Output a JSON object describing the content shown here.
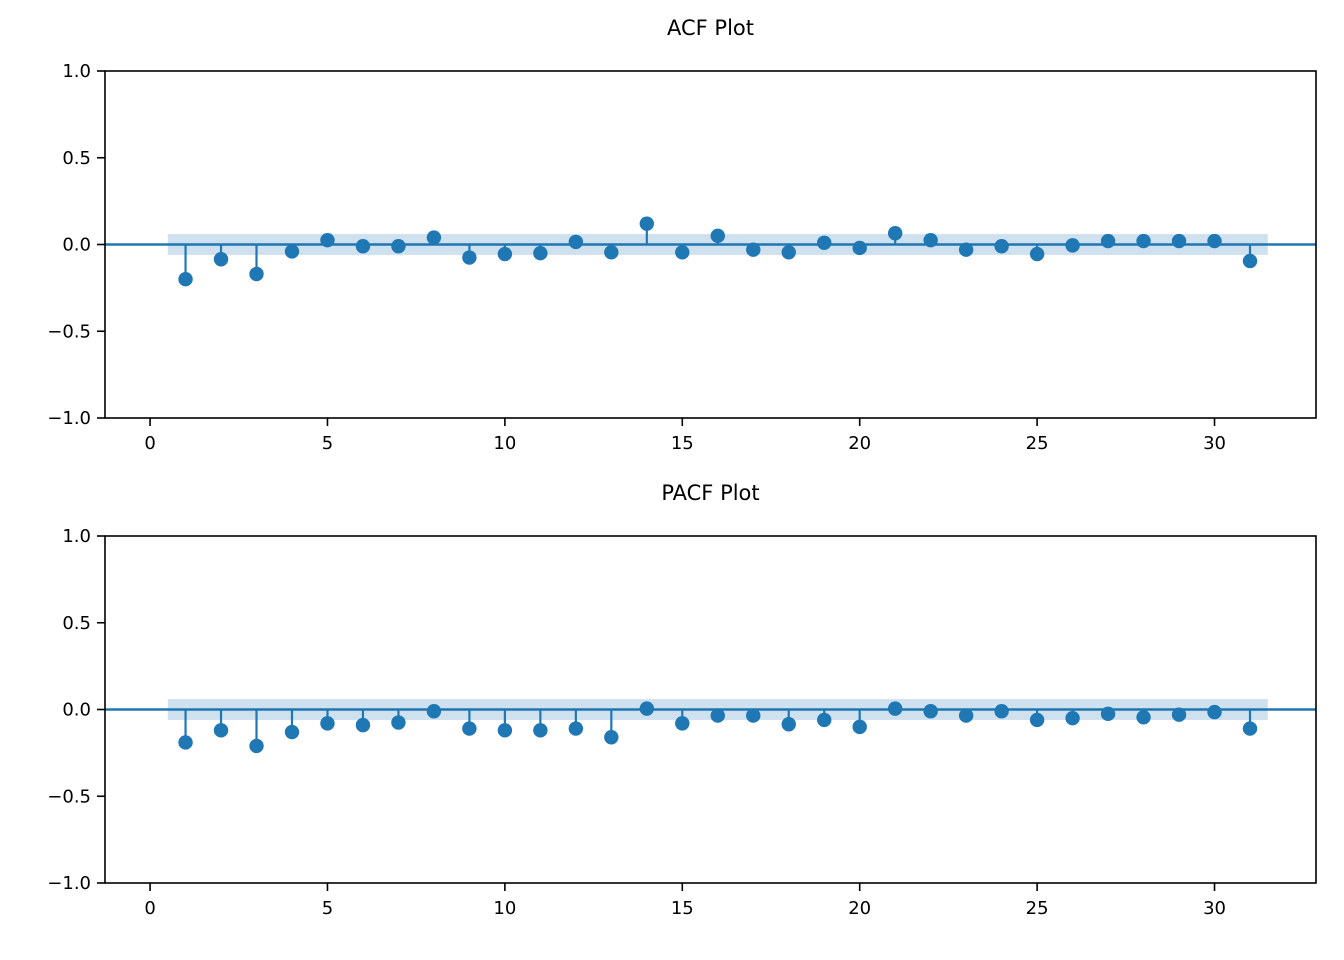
{
  "figure": {
    "background_color": "#ffffff",
    "text_color": "#000000",
    "accent_color": "#1f77b4",
    "band_color": "#cfe0ef"
  },
  "chart_data": [
    {
      "type": "stem",
      "title": "ACF Plot",
      "xlabel": "",
      "ylabel": "",
      "xlim": [
        -1.27,
        32.86
      ],
      "ylim": [
        -1.0,
        1.0
      ],
      "grid": false,
      "legend": "none",
      "xticks": [
        0,
        5,
        10,
        15,
        20,
        25,
        30
      ],
      "xtick_labels": [
        "0",
        "5",
        "10",
        "15",
        "20",
        "25",
        "30"
      ],
      "yticks": [
        1.0,
        0.5,
        0.0,
        -0.5,
        -1.0
      ],
      "ytick_labels": [
        "1.0",
        "0.5",
        "0.0",
        "−0.5",
        "−1.0"
      ],
      "lags": [
        1,
        2,
        3,
        4,
        5,
        6,
        7,
        8,
        9,
        10,
        11,
        12,
        13,
        14,
        15,
        16,
        17,
        18,
        19,
        20,
        21,
        22,
        23,
        24,
        25,
        26,
        27,
        28,
        29,
        30,
        31
      ],
      "values": [
        -0.2,
        -0.085,
        -0.17,
        -0.04,
        0.025,
        -0.01,
        -0.01,
        0.04,
        -0.075,
        -0.055,
        -0.05,
        0.015,
        -0.045,
        0.12,
        -0.045,
        0.05,
        -0.03,
        -0.045,
        0.01,
        -0.02,
        0.065,
        0.025,
        -0.03,
        -0.01,
        -0.055,
        -0.005,
        0.02,
        0.02,
        0.02,
        0.02,
        -0.095
      ],
      "confidence_band": {
        "lo": -0.06,
        "hi": 0.06,
        "x_start": 0.5,
        "x_end": 31.5
      },
      "zero_line": true,
      "stem_color": "#1f77b4",
      "marker_color": "#1f77b4",
      "band_color": "#cfe0ef"
    },
    {
      "type": "stem",
      "title": "PACF Plot",
      "xlabel": "",
      "ylabel": "",
      "xlim": [
        -1.27,
        32.86
      ],
      "ylim": [
        -1.0,
        1.0
      ],
      "grid": false,
      "legend": "none",
      "xticks": [
        0,
        5,
        10,
        15,
        20,
        25,
        30
      ],
      "xtick_labels": [
        "0",
        "5",
        "10",
        "15",
        "20",
        "25",
        "30"
      ],
      "yticks": [
        1.0,
        0.5,
        0.0,
        -0.5,
        -1.0
      ],
      "ytick_labels": [
        "1.0",
        "0.5",
        "0.0",
        "−0.5",
        "−1.0"
      ],
      "lags": [
        1,
        2,
        3,
        4,
        5,
        6,
        7,
        8,
        9,
        10,
        11,
        12,
        13,
        14,
        15,
        16,
        17,
        18,
        19,
        20,
        21,
        22,
        23,
        24,
        25,
        26,
        27,
        28,
        29,
        30,
        31
      ],
      "values": [
        -0.19,
        -0.12,
        -0.21,
        -0.13,
        -0.08,
        -0.09,
        -0.075,
        -0.01,
        -0.11,
        -0.12,
        -0.12,
        -0.11,
        -0.16,
        0.005,
        -0.08,
        -0.035,
        -0.035,
        -0.085,
        -0.06,
        -0.1,
        0.005,
        -0.01,
        -0.035,
        -0.01,
        -0.06,
        -0.05,
        -0.025,
        -0.045,
        -0.03,
        -0.015,
        -0.11
      ],
      "confidence_band": {
        "lo": -0.06,
        "hi": 0.06,
        "x_start": 0.5,
        "x_end": 31.5
      },
      "zero_line": true,
      "stem_color": "#1f77b4",
      "marker_color": "#1f77b4",
      "band_color": "#cfe0ef"
    }
  ]
}
